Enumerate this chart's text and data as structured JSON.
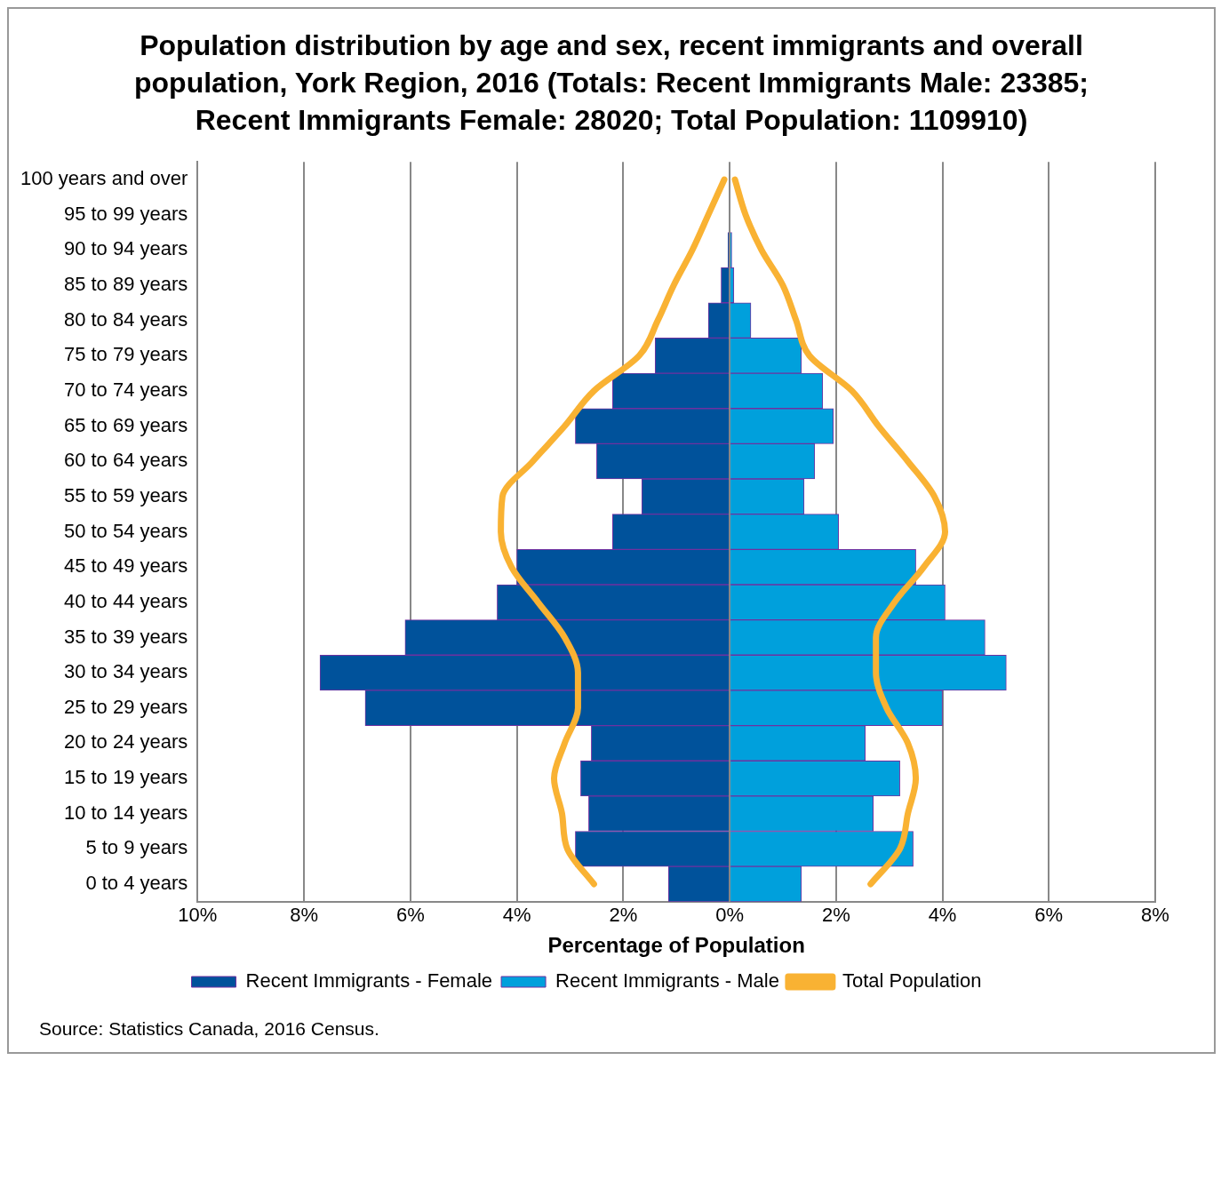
{
  "chart_data": {
    "type": "bar",
    "orientation": "horizontal",
    "title": "Population distribution by age and sex, recent immigrants and overall population, York Region, 2016 (Totals: Recent Immigrants Male: 23385; Recent Immigrants Female: 28020; Total Population: 1109910)",
    "xlabel": "Percentage of Population",
    "categories": [
      "100 years and over",
      "95 to 99 years",
      "90 to 94 years",
      "85 to 89 years",
      "80 to 84 years",
      "75 to 79 years",
      "70 to 74 years",
      "65 to 69 years",
      "60 to 64 years",
      "55 to 59 years",
      "50 to 54 years",
      "45 to 49 years",
      "40 to 44 years",
      "35 to 39 years",
      "30 to 34 years",
      "25 to 29 years",
      "20 to 24 years",
      "15 to 19 years",
      "10 to 14 years",
      "5 to 9 years",
      "0 to 4 years"
    ],
    "series": [
      {
        "name": "Recent Immigrants - Female",
        "color": "#00529b",
        "values": [
          0,
          null,
          -0.03,
          -0.16,
          -0.4,
          -1.4,
          -2.2,
          -2.9,
          -2.5,
          -1.65,
          -2.2,
          -4.0,
          -4.37,
          -6.1,
          -7.7,
          -6.85,
          -2.6,
          -2.8,
          -2.65,
          -2.9,
          -1.15
        ]
      },
      {
        "name": "Recent Immigrants - Male",
        "color": "#00a0dc",
        "values": [
          0,
          null,
          0.04,
          0.08,
          0.4,
          1.35,
          1.75,
          1.95,
          1.6,
          1.4,
          2.05,
          3.5,
          4.05,
          4.8,
          5.2,
          4.0,
          2.55,
          3.2,
          2.7,
          3.45,
          1.35
        ]
      },
      {
        "type": "line",
        "name": "Total Population",
        "color": "#f9b233",
        "values": [
          0.1,
          0.3,
          0.6,
          1.0,
          1.25,
          1.5,
          2.3,
          2.8,
          3.35,
          3.85,
          4.05,
          3.65,
          3.1,
          2.75,
          2.75,
          2.95,
          3.35,
          3.5,
          3.35,
          3.2,
          2.65
        ]
      },
      {
        "type": "line",
        "color": "#f9b233",
        "values": [
          -0.1,
          -0.4,
          -0.7,
          -1.05,
          -1.35,
          -1.7,
          -2.55,
          -3.1,
          -3.7,
          -4.27,
          -4.3,
          -4.1,
          -3.6,
          -3.1,
          -2.85,
          -2.85,
          -3.1,
          -3.3,
          -3.15,
          -3.05,
          -2.55
        ]
      }
    ],
    "xlim": [
      -10,
      8
    ],
    "xticks": [
      {
        "value": -10,
        "label": "10%"
      },
      {
        "value": -8,
        "label": "8%"
      },
      {
        "value": -6,
        "label": "6%"
      },
      {
        "value": -4,
        "label": "4%"
      },
      {
        "value": -2,
        "label": "2%"
      },
      {
        "value": 0,
        "label": "0%"
      },
      {
        "value": 2,
        "label": "2%"
      },
      {
        "value": 4,
        "label": "4%"
      },
      {
        "value": 6,
        "label": "6%"
      },
      {
        "value": 8,
        "label": "8%"
      }
    ],
    "grid": "x",
    "legend": "bottom",
    "stacked": true,
    "marker": "none",
    "annotations": [
      "Source: Statistics Canada, 2016 Census."
    ]
  }
}
